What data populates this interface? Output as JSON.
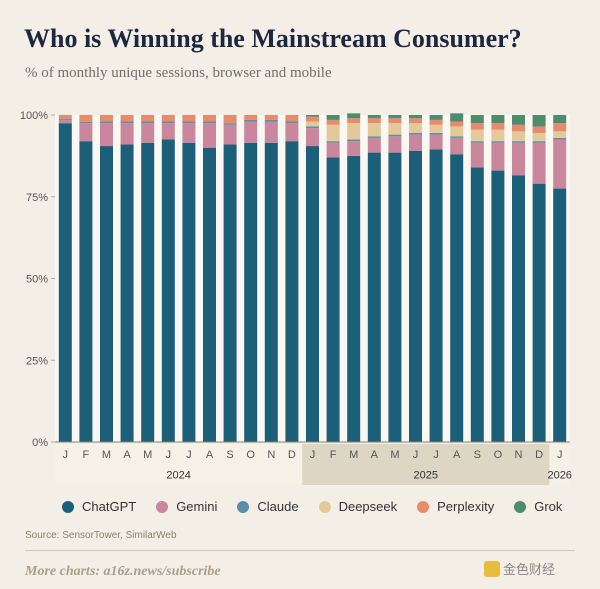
{
  "header": {
    "title": "Who is Winning the Mainstream Consumer?",
    "subtitle": "% of monthly unique sessions, browser and mobile"
  },
  "chart_data": {
    "type": "bar",
    "stacked": true,
    "categories": [
      "J",
      "F",
      "M",
      "A",
      "M",
      "J",
      "J",
      "A",
      "S",
      "O",
      "N",
      "D",
      "J",
      "F",
      "M",
      "A",
      "M",
      "J",
      "J",
      "A",
      "S",
      "O",
      "N",
      "D",
      "J"
    ],
    "year_groups": [
      {
        "label": "2024",
        "start": 0,
        "count": 12,
        "shaded": false
      },
      {
        "label": "2025",
        "start": 12,
        "count": 12,
        "shaded": true
      },
      {
        "label": "2026",
        "start": 24,
        "count": 1,
        "shaded": false
      }
    ],
    "ylim": [
      0,
      100
    ],
    "yticks": [
      0,
      25,
      50,
      75,
      100
    ],
    "ytick_labels": [
      "0%",
      "25%",
      "50%",
      "75%",
      "100%"
    ],
    "grid": false,
    "legend_position": "bottom",
    "series": [
      {
        "name": "ChatGPT",
        "color": "#1c5f78",
        "values": [
          97.5,
          92,
          90.5,
          91,
          91.5,
          92.5,
          91.5,
          90,
          91,
          91.5,
          91.5,
          92,
          90.5,
          87,
          87.5,
          88.5,
          88.5,
          89,
          89.5,
          88,
          84,
          83,
          81.5,
          79,
          77.5
        ]
      },
      {
        "name": "Gemini",
        "color": "#c9869c",
        "values": [
          1,
          5.5,
          7,
          6.5,
          6,
          5,
          6,
          7.5,
          6,
          6.5,
          6.5,
          5.5,
          5.5,
          4.5,
          4.5,
          4.5,
          5,
          5,
          4.5,
          5,
          7.5,
          8.5,
          10,
          12.5,
          15
        ]
      },
      {
        "name": "Claude",
        "color": "#5a8fa6",
        "values": [
          0.3,
          0.4,
          0.5,
          0.5,
          0.5,
          0.5,
          0.5,
          0.5,
          0.5,
          0.5,
          0.5,
          0.5,
          0.5,
          0.5,
          0.5,
          0.5,
          0.5,
          0.5,
          0.5,
          0.5,
          0.5,
          0.5,
          0.5,
          0.5,
          0.5
        ]
      },
      {
        "name": "Deepseek",
        "color": "#e3c999",
        "values": [
          0,
          0,
          0,
          0,
          0,
          0,
          0,
          0,
          0,
          0,
          0,
          0,
          1.5,
          5,
          5,
          4,
          3.5,
          3,
          2.5,
          3,
          3.5,
          3.5,
          3,
          2.5,
          2
        ]
      },
      {
        "name": "Perplexity",
        "color": "#e88b6d",
        "values": [
          1.2,
          2.1,
          2,
          2,
          2,
          2,
          2,
          2,
          2.5,
          1.5,
          1.5,
          2,
          1.5,
          1.5,
          1.5,
          1.5,
          1.5,
          1.5,
          1.5,
          1.5,
          2,
          2,
          2,
          2,
          2.5
        ]
      },
      {
        "name": "Grok",
        "color": "#4f8c6e",
        "values": [
          0,
          0,
          0,
          0,
          0,
          0,
          0,
          0,
          0,
          0,
          0,
          0,
          0.5,
          1.5,
          1.5,
          1,
          1,
          1,
          1.5,
          2.5,
          2.5,
          2.5,
          3,
          3.5,
          2.5
        ]
      }
    ]
  },
  "source": "Source: SensorTower, SimilarWeb",
  "footer": "More charts: a16z.news/subscribe",
  "watermark": "金色财经"
}
